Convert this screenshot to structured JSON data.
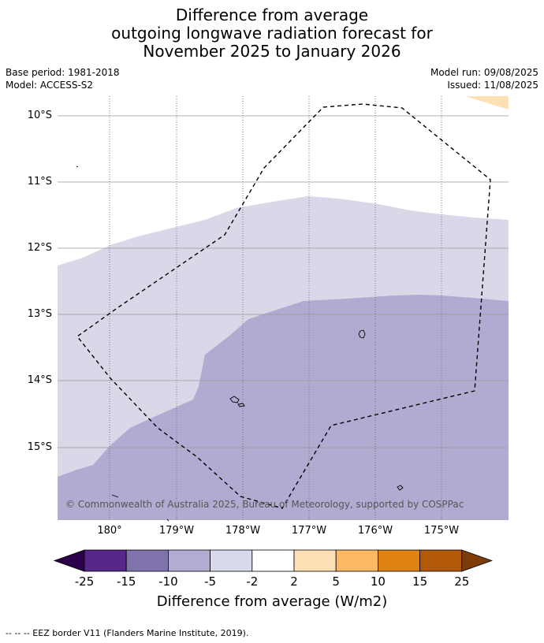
{
  "title": {
    "line1": "Difference from average",
    "line2": "outgoing longwave radiation forecast for",
    "line3": "November 2025 to January 2026"
  },
  "meta": {
    "base_period": "Base period: 1981-2018",
    "model": "Model: ACCESS-S2",
    "model_run": "Model run: 09/08/2025",
    "issued": "Issued: 11/08/2025"
  },
  "map": {
    "lat_labels": [
      "10°S",
      "11°S",
      "12°S",
      "13°S",
      "14°S",
      "15°S"
    ],
    "lon_labels": [
      "180°",
      "179°W",
      "178°W",
      "177°W",
      "176°W",
      "175°W"
    ],
    "copyright": "© Commonwealth of Australia 2025, Bureau of Meteorology, supported by COSPPac",
    "colors": {
      "lightest_purple": "#d8d8e8",
      "light_purple": "#b1abd1",
      "light_orange": "#fee0b6",
      "gridline": "#999999",
      "eez_border": "#000000"
    }
  },
  "colorbar": {
    "ticks": [
      "-25",
      "-15",
      "-10",
      "-5",
      "-2",
      "2",
      "5",
      "10",
      "15",
      "25"
    ],
    "colors": [
      "#2d004b",
      "#542788",
      "#8073ac",
      "#b2abd2",
      "#d8daeb",
      "#ffffff",
      "#fee0b6",
      "#fdb863",
      "#e08214",
      "#b35806",
      "#7f3b08"
    ],
    "label": "Difference from average (W/m2)"
  },
  "footer": {
    "legend_text": "--  --  -- EEZ border V11 (Flanders Marine Institute, 2019)."
  }
}
